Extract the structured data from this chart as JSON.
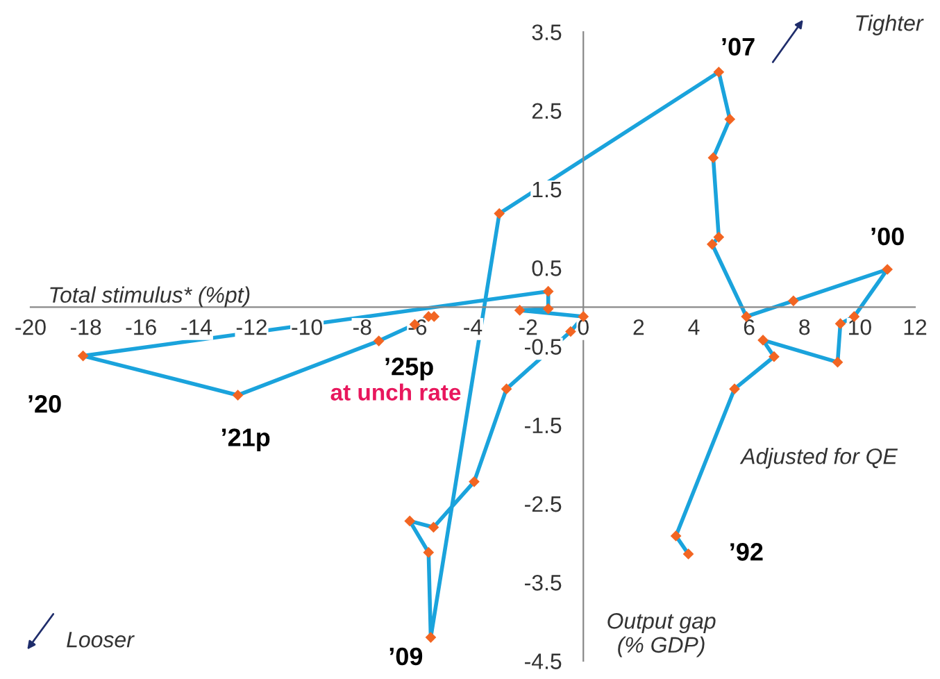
{
  "chart_data": {
    "type": "line",
    "xlabel": "Total stimulus* (%pt)",
    "ylabel": "Output gap\n(% GDP)",
    "x": [
      3.8,
      3.35,
      5.47,
      6.9,
      6.5,
      9.2,
      9.3,
      9.8,
      11.0,
      7.6,
      5.9,
      4.66,
      4.9,
      4.7,
      5.3,
      4.9,
      -3.04,
      -5.52,
      -5.6,
      -6.28,
      -5.42,
      -3.95,
      -2.78,
      -0.46,
      0.0,
      -2.3,
      -1.27,
      -1.27,
      -18.1,
      -12.5,
      -7.4,
      -6.1,
      -5.6,
      -5.4
    ],
    "series": [
      {
        "color": "#1aa3dc",
        "colors": [
          "#f26522",
          "#f26522",
          "#f26522",
          "#f26522",
          "#f26522",
          "#f26522",
          "#f26522",
          "#f26522",
          "#f26522",
          "#f26522",
          "#f26522",
          "#f26522",
          "#f26522",
          "#f26522",
          "#f26522",
          "#f26522",
          "#f26522",
          "#f26522",
          "#f26522",
          "#f26522",
          "#f26522",
          "#f26522",
          "#f26522",
          "#f26522",
          "#f26522",
          "#f26522",
          "#f26522",
          "#f26522",
          "#f26522",
          "#f26522",
          "#f26522",
          "#f26522",
          "#f26522",
          "#f26522"
        ],
        "values": [
          -3.14,
          -2.91,
          -1.04,
          -0.63,
          -0.42,
          -0.7,
          -0.21,
          -0.12,
          0.48,
          0.08,
          -0.12,
          0.8,
          0.89,
          1.9,
          2.39,
          2.99,
          1.19,
          -4.2,
          -3.12,
          -2.72,
          -2.8,
          -2.22,
          -1.04,
          -0.31,
          -0.12,
          -0.04,
          -0.02,
          0.2,
          -0.62,
          -1.12,
          -0.43,
          -0.22,
          -0.12,
          -0.12
        ]
      }
    ],
    "marker": "diamond",
    "xlim": [
      -20,
      12
    ],
    "xticks": [
      -20,
      -18,
      -16,
      -14,
      -12,
      -10,
      -8,
      -6,
      -4,
      -2,
      0,
      2,
      4,
      6,
      8,
      10,
      12
    ],
    "ylim": [
      -4.5,
      3.5
    ],
    "yticks": [
      -4.5,
      -3.5,
      -2.5,
      -1.5,
      -0.5,
      0.5,
      1.5,
      2.5,
      3.5
    ],
    "grid": false,
    "legend": false,
    "annotations": [
      {
        "text": "’92",
        "x": 3.8,
        "y": -3.14
      },
      {
        "text": "’00",
        "x": 11.0,
        "y": 0.48
      },
      {
        "text": "’07",
        "x": 4.9,
        "y": 2.99
      },
      {
        "text": "’09",
        "x": -5.52,
        "y": -4.2
      },
      {
        "text": "’20",
        "x": -18.1,
        "y": -0.62
      },
      {
        "text": "’21p",
        "x": -12.5,
        "y": -1.12
      },
      {
        "text": "’25p",
        "x": -5.4,
        "y": -0.12
      },
      "at unch rate",
      "Adjusted for QE",
      "Tighter",
      "Looser"
    ]
  }
}
